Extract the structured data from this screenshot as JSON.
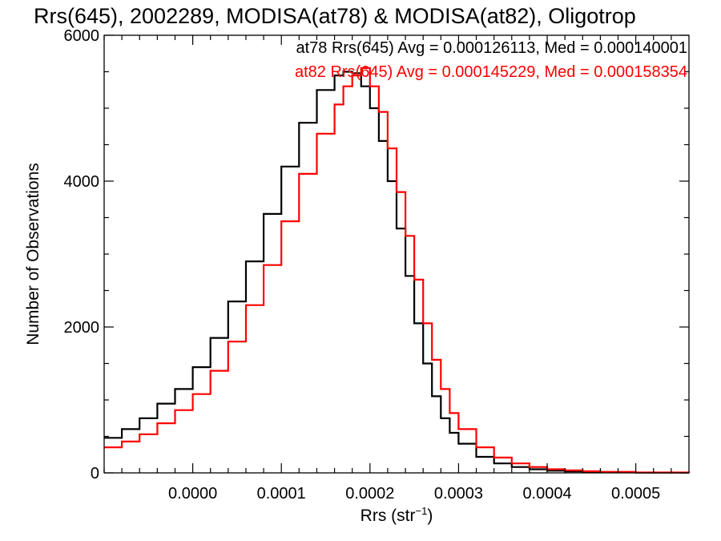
{
  "chart_data": {
    "type": "histogram",
    "title": "Rrs(645), 2002289, MODISA(at78) & MODISA(at82), Oligotrop",
    "xlabel": "Rrs (str",
    "xlabel_sup": "−1",
    "xlabel_suffix": ")",
    "ylabel": "Number of Observations",
    "xlim": [
      -0.0001,
      0.00056
    ],
    "ylim": [
      0,
      6000
    ],
    "grid": false,
    "xticks": [
      0.0,
      0.0001,
      0.0002,
      0.0003,
      0.0004,
      0.0005
    ],
    "xtick_labels": [
      "0.0000",
      "0.0001",
      "0.0002",
      "0.0003",
      "0.0004",
      "0.0005"
    ],
    "yticks": [
      0,
      2000,
      4000,
      6000
    ],
    "ytick_labels": [
      "0",
      "2000",
      "4000",
      "6000"
    ],
    "legend": {
      "placement": "top-right",
      "entries": [
        {
          "text": "at78 Rrs(645) Avg = 0.000126113, Med = 0.000140001",
          "color": "#000000"
        },
        {
          "text": "at82 Rrs(645) Avg = 0.000145229, Med = 0.000158354",
          "color": "#ff0000"
        }
      ]
    },
    "series": [
      {
        "color": "#000000",
        "x": [
          -0.0001,
          -8e-05,
          -6e-05,
          -4e-05,
          -2e-05,
          0.0,
          2e-05,
          4e-05,
          6e-05,
          8e-05,
          0.0001,
          0.00012,
          0.00014,
          0.00016,
          0.00017,
          0.00018,
          0.00019,
          0.0002,
          0.00021,
          0.00022,
          0.00023,
          0.00024,
          0.00025,
          0.00026,
          0.00027,
          0.00028,
          0.00029,
          0.0003,
          0.00032,
          0.00034,
          0.00036,
          0.00038,
          0.0004,
          0.00042,
          0.00044,
          0.00046,
          0.0005,
          0.00056
        ],
        "values": [
          480,
          600,
          750,
          950,
          1150,
          1450,
          1850,
          2350,
          2900,
          3550,
          4200,
          4800,
          5250,
          5450,
          5500,
          5480,
          5300,
          5000,
          4550,
          4000,
          3350,
          2700,
          2050,
          1500,
          1050,
          750,
          550,
          400,
          220,
          130,
          80,
          50,
          30,
          20,
          12,
          8,
          4,
          0
        ]
      },
      {
        "color": "#ff0000",
        "x": [
          -0.0001,
          -8e-05,
          -6e-05,
          -4e-05,
          -2e-05,
          0.0,
          2e-05,
          4e-05,
          6e-05,
          8e-05,
          0.0001,
          0.00012,
          0.00014,
          0.00016,
          0.00017,
          0.00018,
          0.00019,
          0.0002,
          0.00021,
          0.00022,
          0.00023,
          0.00024,
          0.00025,
          0.00026,
          0.00027,
          0.00028,
          0.00029,
          0.0003,
          0.00032,
          0.00034,
          0.00036,
          0.00038,
          0.0004,
          0.00042,
          0.00044,
          0.00046,
          0.0005,
          0.00056
        ],
        "values": [
          350,
          430,
          530,
          680,
          860,
          1080,
          1400,
          1800,
          2300,
          2850,
          3450,
          4100,
          4650,
          5050,
          5300,
          5450,
          5550,
          5300,
          4950,
          4450,
          3850,
          3250,
          2650,
          2050,
          1550,
          1150,
          820,
          600,
          350,
          210,
          130,
          80,
          50,
          35,
          22,
          14,
          6,
          2
        ]
      }
    ]
  }
}
